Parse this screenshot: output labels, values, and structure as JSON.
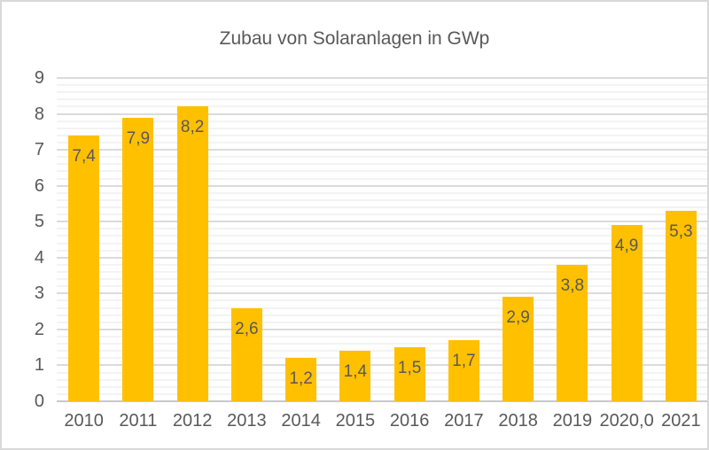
{
  "chart_data": {
    "type": "bar",
    "title": "Zubau von Solaranlagen in GWp",
    "xlabel": "",
    "ylabel": "",
    "categories": [
      "2010",
      "2011",
      "2012",
      "2013",
      "2014",
      "2015",
      "2016",
      "2017",
      "2018",
      "2019",
      "2020,0",
      "2021"
    ],
    "values": [
      7.4,
      7.9,
      8.2,
      2.6,
      1.2,
      1.4,
      1.5,
      1.7,
      2.9,
      3.8,
      4.9,
      5.3
    ],
    "value_labels": [
      "7,4",
      "7,9",
      "8,2",
      "2,6",
      "1,2",
      "1,4",
      "1,5",
      "1,7",
      "2,9",
      "3,8",
      "4,9",
      "5,3"
    ],
    "y_ticks": [
      "0",
      "1",
      "2",
      "3",
      "4",
      "5",
      "6",
      "7",
      "8",
      "9"
    ],
    "ylim": [
      0,
      9
    ],
    "y_major_step": 1,
    "y_minor_step": 0.2,
    "grid": "horizontal major+minor",
    "legend": "none",
    "value_label_position": "inside-top",
    "colors": {
      "bar": "#FFC000",
      "text": "#595959",
      "gridline_major": "#DBDBDB",
      "gridline_minor": "#F3F3F3",
      "axis_line": "#C9C9C9",
      "frame_border": "#D9D9D9",
      "background": "#FFFFFF"
    }
  }
}
